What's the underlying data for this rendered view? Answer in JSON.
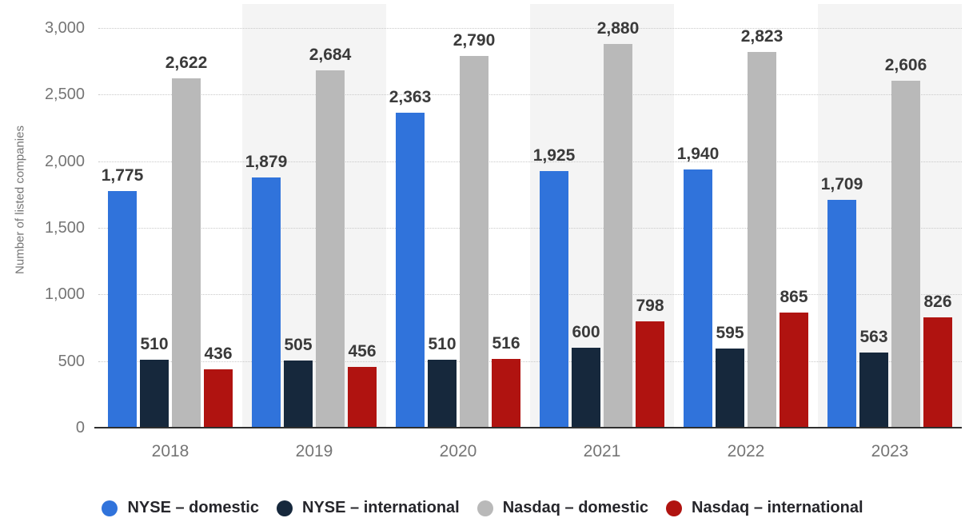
{
  "chart_data": {
    "type": "bar",
    "title": "",
    "xlabel": "",
    "ylabel": "Number of listed companies",
    "ylim": [
      0,
      3000
    ],
    "ytick_step": 500,
    "yticks": [
      "3,000",
      "2,500",
      "2,000",
      "1,500",
      "1,000",
      "500",
      "0"
    ],
    "grid": "horizontal-dotted",
    "legend_position": "bottom",
    "categories": [
      "2018",
      "2019",
      "2020",
      "2021",
      "2022",
      "2023"
    ],
    "series": [
      {
        "name": "NYSE – domestic",
        "color": "#3073db",
        "values": [
          1775,
          1879,
          2363,
          1925,
          1940,
          1709
        ]
      },
      {
        "name": "NYSE – international",
        "color": "#16283c",
        "values": [
          510,
          505,
          510,
          600,
          595,
          563
        ]
      },
      {
        "name": "Nasdaq – domestic",
        "color": "#b9b9b9",
        "values": [
          2622,
          2684,
          2790,
          2880,
          2823,
          2606
        ]
      },
      {
        "name": "Nasdaq – international",
        "color": "#b01310",
        "values": [
          436,
          456,
          516,
          798,
          865,
          826
        ]
      }
    ],
    "band_color": "#f4f4f4",
    "banded_categories": [
      "2019",
      "2021",
      "2023"
    ]
  }
}
